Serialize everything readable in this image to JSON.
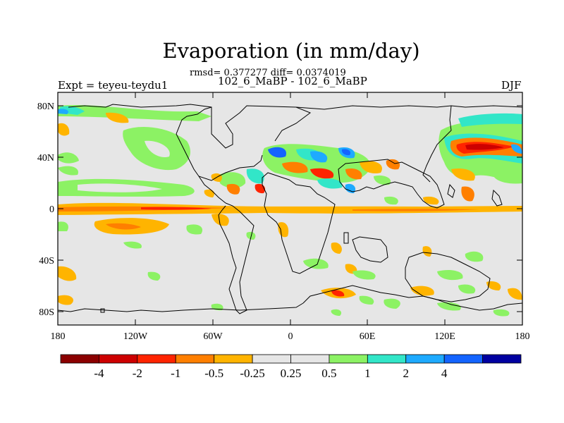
{
  "title": "Evaporation (in mm/day)",
  "stats": "rmsd= 0.377277 diff= 0.0374019",
  "subtitle": "102_6_MaBP - 102_6_MaBP",
  "left_label": "Expt = teyeu-teydu1",
  "right_label": "DJF",
  "lat_labels": [
    "80N",
    "40N",
    "0",
    "40S",
    "80S"
  ],
  "lon_labels": [
    "180",
    "120W",
    "60W",
    "0",
    "60E",
    "120E",
    "180"
  ],
  "colorbar": {
    "colors": [
      "#8b0000",
      "#cd0000",
      "#ff2400",
      "#ff7f00",
      "#ffb400",
      "#e6e6e6",
      "#e6e6e6",
      "#8cf264",
      "#32e6c8",
      "#1eaaff",
      "#1464ff",
      "#0000a0"
    ],
    "labels": [
      "-4",
      "-2",
      "-1",
      "-0.5",
      "-0.25",
      "0.25",
      "0.5",
      "1",
      "2",
      "4"
    ]
  },
  "colors": {
    "background_field": "#e6e6e6",
    "coastline": "#000000"
  }
}
